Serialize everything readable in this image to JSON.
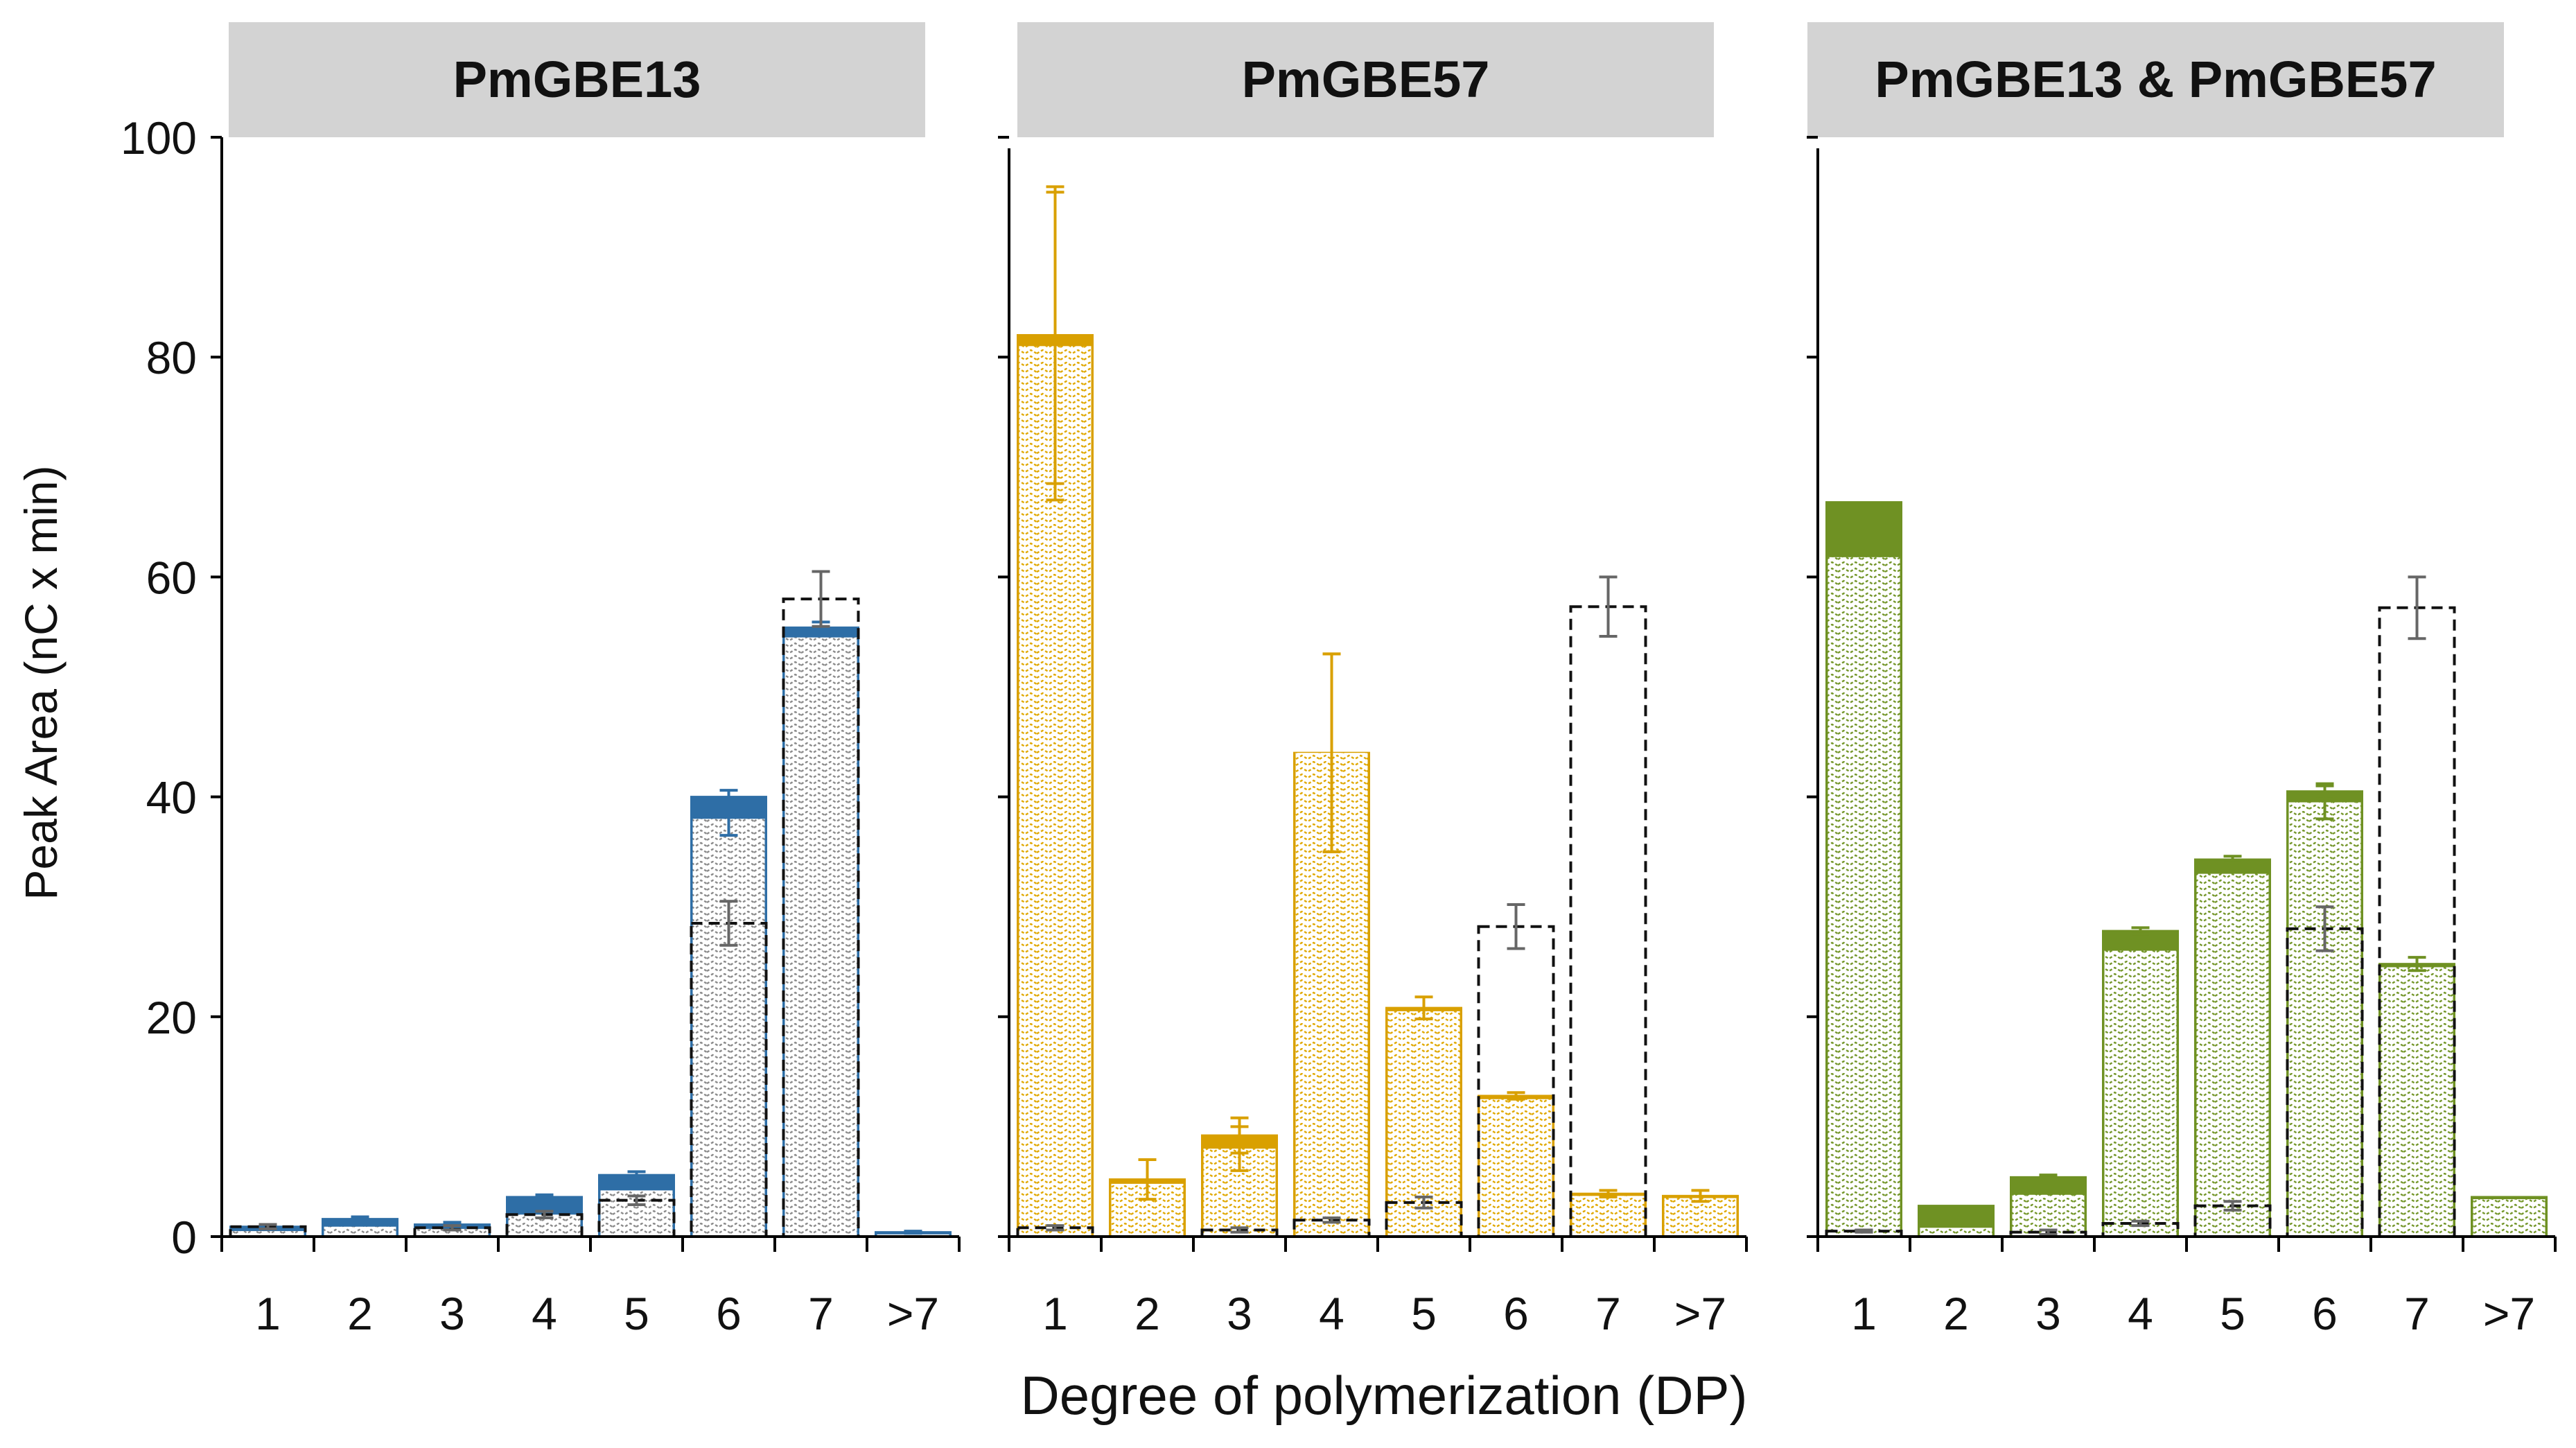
{
  "chart_data": {
    "type": "bar",
    "title": "",
    "xlabel": "Degree of polymerization (DP)",
    "ylabel": "Peak Area (nC x min)",
    "ylim": [
      0,
      100
    ],
    "yticks": [
      "0",
      "20",
      "40",
      "60",
      "80",
      "100"
    ],
    "categories": [
      "1",
      "2",
      "3",
      "4",
      "5",
      "6",
      "7",
      ">7"
    ],
    "legend_position": "none",
    "colors": {
      "reference": "#333333",
      "errorbar_ref": "#666666"
    },
    "panels": [
      {
        "title": "PmGBE13",
        "color": "#2E6EA6",
        "series": [
          {
            "name": "total",
            "values": [
              0.9,
              1.6,
              1.1,
              3.6,
              5.6,
              40.0,
              55.4,
              0.4
            ]
          },
          {
            "name": "hatched",
            "values": [
              0.5,
              0.9,
              0.7,
              2.0,
              4.2,
              38.0,
              54.5,
              0.2
            ]
          },
          {
            "name": "reference",
            "values": [
              0.9,
              0,
              0.8,
              2.0,
              3.3,
              28.5,
              58.0,
              0
            ]
          }
        ],
        "errors": {
          "total": [
            0.2,
            0.2,
            0.2,
            0.2,
            0.3,
            0.6,
            0.5,
            0.1
          ],
          "hatched": [
            0,
            0,
            0,
            0,
            0,
            1.5,
            0,
            0
          ],
          "reference": [
            0.2,
            0,
            0.2,
            0.3,
            0.4,
            2.0,
            2.5,
            0
          ]
        }
      },
      {
        "title": "PmGBE57",
        "color": "#D9A000",
        "series": [
          {
            "name": "total",
            "values": [
              82.0,
              5.2,
              9.2,
              44.0,
              20.8,
              12.8,
              3.9,
              3.7
            ]
          },
          {
            "name": "hatched",
            "values": [
              81.0,
              4.8,
              8.0,
              44.0,
              20.5,
              12.5,
              3.7,
              3.5
            ]
          },
          {
            "name": "reference",
            "values": [
              0.8,
              0,
              0.6,
              1.5,
              3.1,
              28.2,
              57.3,
              0
            ]
          }
        ],
        "errors": {
          "total": [
            13.5,
            1.8,
            1.6,
            9.0,
            1.0,
            0.3,
            0.3,
            0.5
          ],
          "hatched": [
            14.0,
            0,
            2.0,
            9.0,
            0,
            0,
            0,
            0
          ],
          "reference": [
            0.2,
            0,
            0.2,
            0.2,
            0.5,
            2.0,
            2.7,
            0
          ]
        }
      },
      {
        "title": "PmGBE13 & PmGBE57",
        "color": "#6F9123",
        "series": [
          {
            "name": "total",
            "values": [
              66.8,
              2.8,
              5.4,
              27.8,
              34.3,
              40.5,
              24.8,
              3.6
            ]
          },
          {
            "name": "hatched",
            "values": [
              61.8,
              0.8,
              3.8,
              26.0,
              33.0,
              39.5,
              24.5,
              3.4
            ]
          },
          {
            "name": "reference",
            "values": [
              0.5,
              0,
              0.4,
              1.2,
              2.8,
              28.0,
              57.2,
              0
            ]
          }
        ],
        "errors": {
          "total": [
            0,
            0,
            0.2,
            0.3,
            0.3,
            0.7,
            0.6,
            0
          ],
          "hatched": [
            0,
            0,
            0,
            0,
            0,
            1.5,
            0,
            0
          ],
          "reference": [
            0.1,
            0,
            0.2,
            0.2,
            0.4,
            2.0,
            2.8,
            0
          ]
        }
      }
    ]
  }
}
